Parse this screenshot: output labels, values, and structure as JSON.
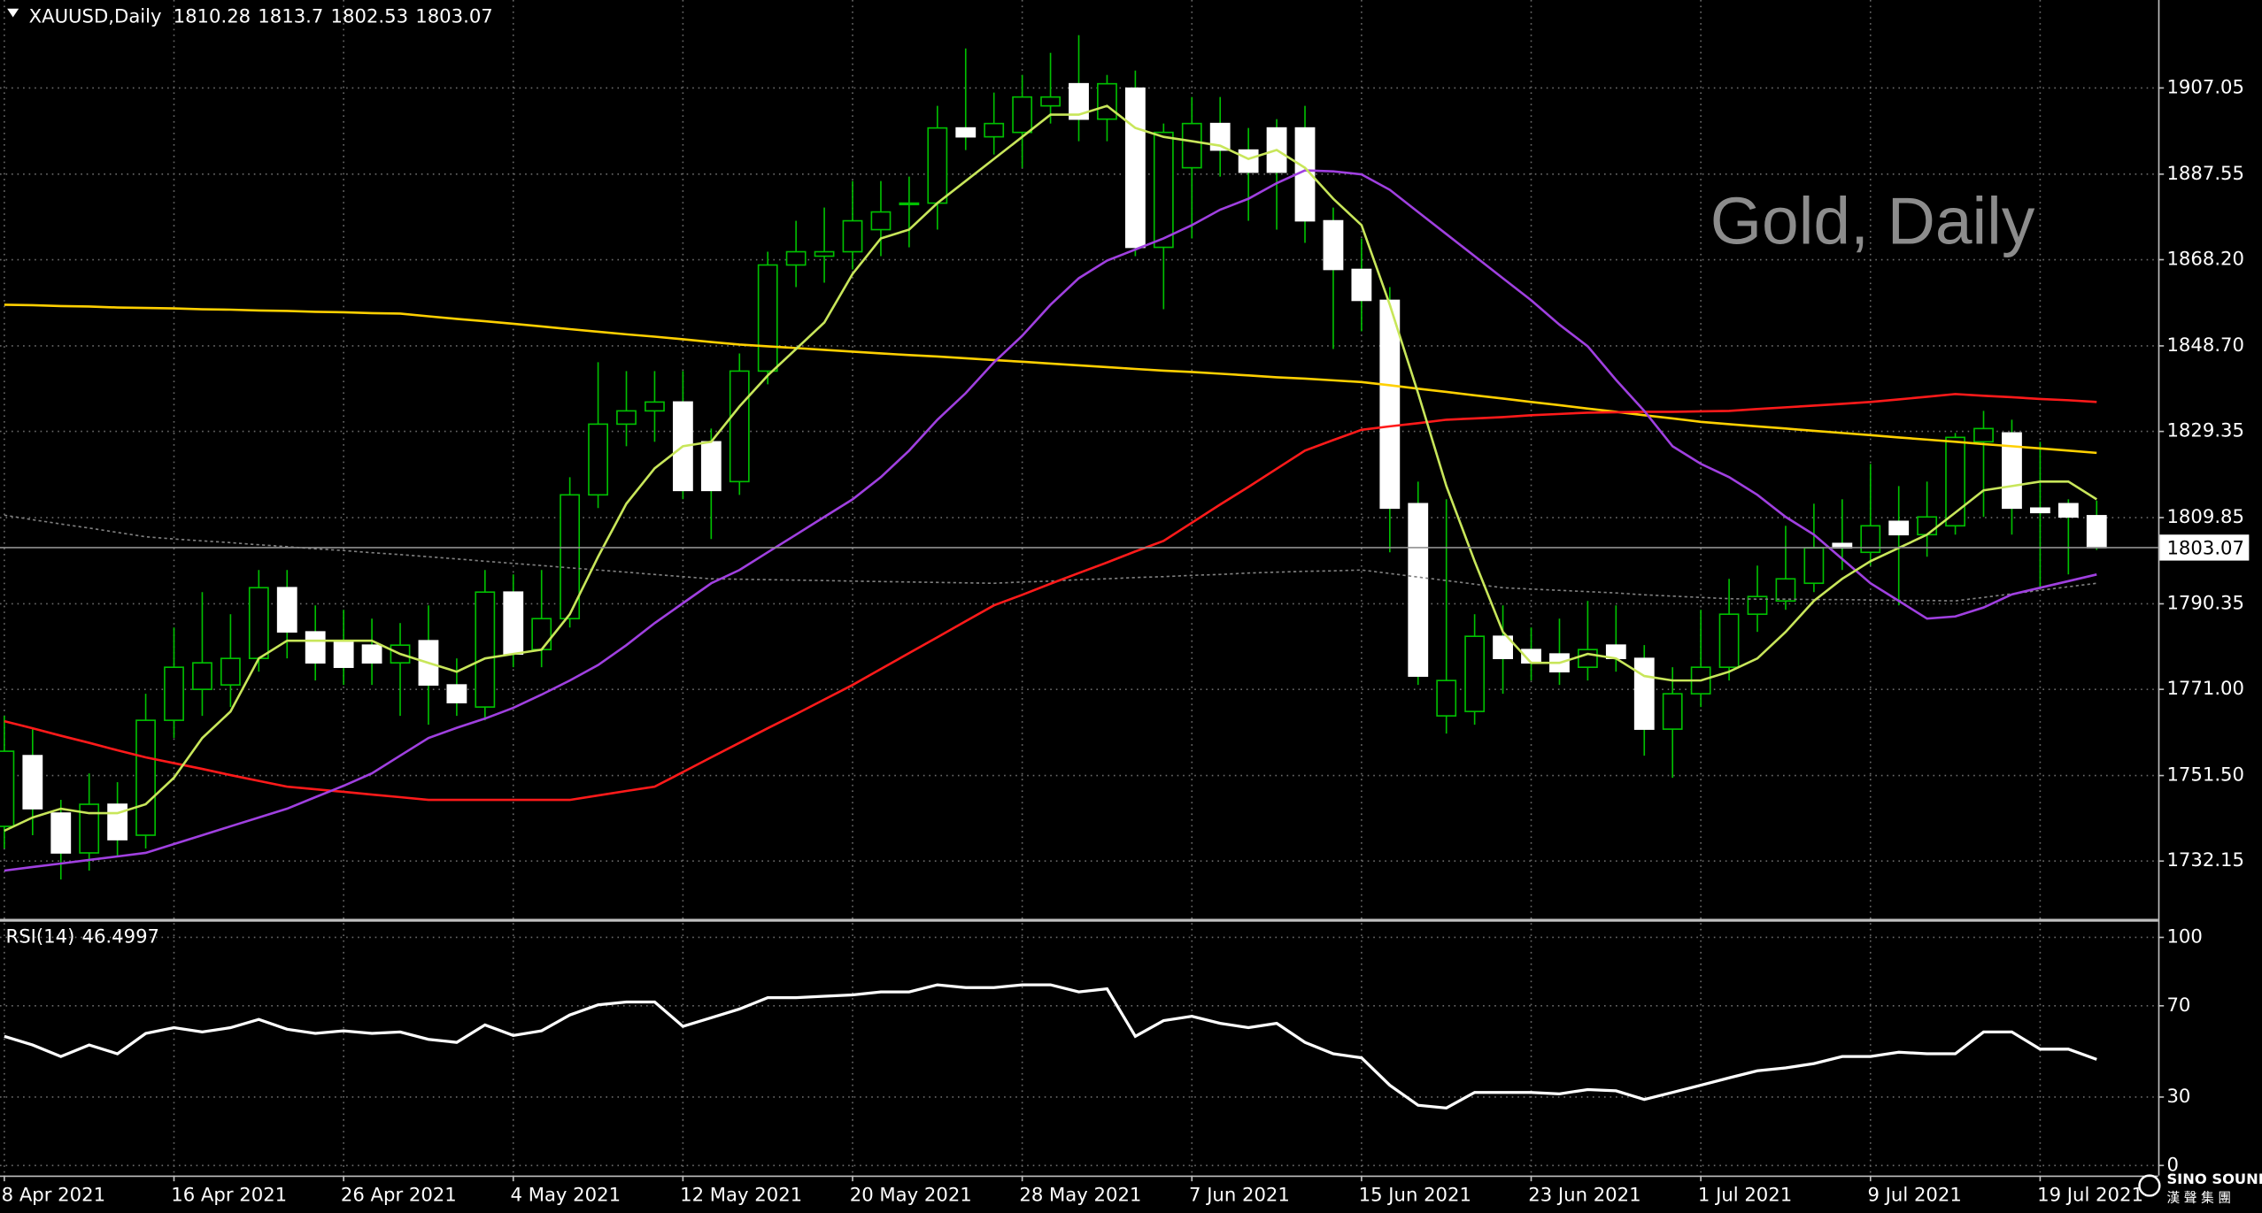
{
  "chart_data": [
    {
      "type": "candlestick",
      "title": "XAUUSD,Daily",
      "annotation": "Gold, Daily",
      "categories": [
        "8 Apr 2021",
        null,
        null,
        null,
        null,
        null,
        "16 Apr 2021",
        null,
        null,
        null,
        null,
        null,
        "26 Apr 2021",
        null,
        null,
        null,
        null,
        null,
        "4 May 2021",
        null,
        null,
        null,
        null,
        null,
        "12 May 2021",
        null,
        null,
        null,
        null,
        null,
        "20 May 2021",
        null,
        null,
        null,
        null,
        null,
        "28 May 2021",
        null,
        null,
        null,
        null,
        null,
        "7 Jun 2021",
        null,
        null,
        null,
        null,
        null,
        "15 Jun 2021",
        null,
        null,
        null,
        null,
        null,
        "23 Jun 2021",
        null,
        null,
        null,
        null,
        null,
        "1 Jul 2021",
        null,
        null,
        null,
        null,
        null,
        "9 Jul 2021",
        null,
        null,
        null,
        null,
        null,
        "19 Jul 2021",
        null,
        null
      ],
      "open": [
        1740,
        1756,
        1743,
        1734,
        1745,
        1738,
        1764,
        1771,
        1772,
        1778,
        1794,
        1784,
        1782,
        1781,
        1777,
        1782,
        1772,
        1767,
        1793,
        1780,
        1787,
        1815,
        1831,
        1834,
        1836,
        1827,
        1818,
        1843,
        1867,
        1869,
        1870,
        1875,
        1881,
        1881,
        1898,
        1896,
        1897,
        1903,
        1908,
        1900,
        1907,
        1871,
        1889,
        1899,
        1893,
        1898,
        1898,
        1877,
        1866,
        1859,
        1813,
        1765,
        1766,
        1783,
        1780,
        1779,
        1776,
        1781,
        1778,
        1762,
        1770,
        1776,
        1788,
        1791,
        1795,
        1804,
        1802,
        1809,
        1806,
        1808,
        1827,
        1829,
        1812,
        1813,
        1810.28
      ],
      "high": [
        1765,
        1762,
        1746,
        1752,
        1750,
        1770,
        1785,
        1793,
        1788,
        1798,
        1798,
        1790,
        1789,
        1787,
        1786,
        1790,
        1778,
        1798,
        1797,
        1798,
        1819,
        1845,
        1843,
        1843,
        1843,
        1830,
        1847,
        1870,
        1877,
        1880,
        1886,
        1886,
        1887,
        1903,
        1916,
        1906,
        1910,
        1915,
        1919,
        1910,
        1911,
        1899,
        1905,
        1905,
        1898,
        1900,
        1903,
        1880,
        1873,
        1862,
        1818,
        1814,
        1788,
        1790,
        1785,
        1787,
        1791,
        1790,
        1781,
        1776,
        1789,
        1796,
        1799,
        1808,
        1813,
        1814,
        1822,
        1817,
        1818,
        1829,
        1834,
        1832,
        1827,
        1814,
        1813.7
      ],
      "low": [
        1735,
        1738,
        1728,
        1730,
        1733,
        1735,
        1760,
        1765,
        1767,
        1775,
        1778,
        1773,
        1772,
        1772,
        1765,
        1763,
        1765,
        1764,
        1776,
        1776,
        1785,
        1812,
        1826,
        1827,
        1814,
        1805,
        1815,
        1840,
        1862,
        1863,
        1866,
        1869,
        1871,
        1875,
        1893,
        1892,
        1889,
        1899,
        1895,
        1895,
        1869,
        1857,
        1873,
        1887,
        1877,
        1875,
        1872,
        1848,
        1852,
        1802,
        1772,
        1761,
        1763,
        1770,
        1773,
        1772,
        1773,
        1775,
        1756,
        1751,
        1767,
        1773,
        1784,
        1789,
        1793,
        1798,
        1799,
        1790,
        1801,
        1806,
        1810,
        1806,
        1794,
        1797,
        1802.53
      ],
      "close": [
        1757,
        1744,
        1734,
        1745,
        1737,
        1764,
        1776,
        1777,
        1778,
        1794,
        1784,
        1777,
        1776,
        1777,
        1781,
        1772,
        1768,
        1793,
        1779,
        1787,
        1815,
        1831,
        1834,
        1836,
        1816,
        1816,
        1843,
        1867,
        1870,
        1870,
        1877,
        1879,
        1881,
        1898,
        1896,
        1899,
        1905,
        1905,
        1900,
        1908,
        1871,
        1897,
        1899,
        1893,
        1888,
        1888,
        1877,
        1866,
        1859,
        1812,
        1774,
        1773,
        1783,
        1778,
        1777,
        1775,
        1780,
        1778,
        1762,
        1770,
        1776,
        1788,
        1792,
        1796,
        1803,
        1803,
        1808,
        1806,
        1810,
        1828,
        1830,
        1812,
        1811,
        1810,
        1803.07
      ],
      "up_color": "#00c000",
      "down_color": "#ffffff",
      "wick_color": "#00c000",
      "lines": [
        {
          "color": "#ffd000",
          "values": [
            1858,
            1857.9,
            1857.7,
            1857.6,
            1857.4,
            1857.3,
            1857.2,
            1857,
            1856.9,
            1856.7,
            1856.6,
            1856.4,
            1856.3,
            1856.1,
            1856,
            1855.4,
            1854.8,
            1854.3,
            1853.7,
            1853.1,
            1852.5,
            1851.9,
            1851.3,
            1850.8,
            1850.2,
            1849.6,
            1849,
            1848.6,
            1848.2,
            1847.8,
            1847.4,
            1847,
            1846.6,
            1846.3,
            1845.9,
            1845.5,
            1845.1,
            1844.7,
            1844.3,
            1843.9,
            1843.5,
            1843.1,
            1842.8,
            1842.4,
            1842,
            1841.6,
            1841.3,
            1840.9,
            1840.5,
            1839.8,
            1839,
            1838.3,
            1837.5,
            1836.8,
            1836,
            1835.3,
            1834.5,
            1833.8,
            1833,
            1832.3,
            1831.5,
            1831,
            1830.5,
            1830,
            1829.5,
            1829,
            1828.5,
            1828,
            1827.5,
            1827,
            1826.5,
            1826,
            1825.5,
            1825,
            1824.5
          ]
        },
        {
          "color": "#808080",
          "style": "dotted",
          "values": [
            1810.4,
            1809.4,
            1808.4,
            1807.5,
            1806.5,
            1805.5,
            1805,
            1804.6,
            1804.2,
            1803.7,
            1803.3,
            1802.8,
            1802.4,
            1801.9,
            1801.5,
            1801,
            1800.5,
            1800,
            1799.5,
            1799,
            1798.5,
            1798,
            1797.5,
            1797,
            1796.5,
            1796,
            1795.9,
            1795.8,
            1795.7,
            1795.6,
            1795.5,
            1795.4,
            1795.3,
            1795.2,
            1795.1,
            1795,
            1795.3,
            1795.5,
            1795.8,
            1796,
            1796.3,
            1796.5,
            1796.8,
            1797,
            1797.3,
            1797.5,
            1797.7,
            1797.8,
            1798,
            1797.2,
            1796.4,
            1795.6,
            1794.8,
            1794,
            1793.7,
            1793.4,
            1793.1,
            1792.8,
            1792.4,
            1792.1,
            1791.8,
            1791.5,
            1791.4,
            1791.4,
            1791.3,
            1791.3,
            1791.2,
            1791.1,
            1791.1,
            1791,
            1791.8,
            1792.6,
            1793.4,
            1794.2,
            1795
          ]
        },
        {
          "color": "#ff1a1a",
          "values": [
            1763.8,
            1762.2,
            1760.5,
            1758.9,
            1757.2,
            1755.6,
            1754.3,
            1753,
            1751.6,
            1750.3,
            1749,
            1748.4,
            1747.8,
            1747.2,
            1746.6,
            1746,
            1746,
            1746,
            1746,
            1746,
            1746,
            1747,
            1748,
            1749,
            1752.3,
            1755.6,
            1758.9,
            1762.2,
            1765.4,
            1768.7,
            1772,
            1775.6,
            1779.2,
            1782.8,
            1786.4,
            1790,
            1792.4,
            1794.9,
            1797.3,
            1799.7,
            1802.2,
            1804.6,
            1808.7,
            1812.8,
            1816.8,
            1820.9,
            1825,
            1827.4,
            1829.7,
            1830.5,
            1831.2,
            1832,
            1832.3,
            1832.6,
            1833,
            1833.3,
            1833.6,
            1833.7,
            1833.8,
            1833.8,
            1833.9,
            1834,
            1834.4,
            1834.8,
            1835.2,
            1835.6,
            1836,
            1836.6,
            1837.2,
            1837.8,
            1837.4,
            1837.1,
            1836.7,
            1836.4,
            1836
          ]
        },
        {
          "color": "#a040e0",
          "values": [
            1730,
            1730.8,
            1731.6,
            1732.4,
            1733.2,
            1734,
            1736,
            1738,
            1740,
            1742,
            1744,
            1746.6,
            1749.2,
            1752,
            1756,
            1760,
            1762.3,
            1764.4,
            1766.8,
            1769.8,
            1773,
            1776.5,
            1781,
            1786,
            1790.5,
            1795,
            1798,
            1802,
            1806,
            1810,
            1814,
            1819,
            1825,
            1832,
            1838,
            1845,
            1851,
            1858,
            1864,
            1868,
            1870.5,
            1873,
            1876,
            1879.5,
            1882,
            1885.5,
            1888.4,
            1888.2,
            1887.5,
            1884,
            1879,
            1874,
            1869,
            1864,
            1859,
            1853.5,
            1848.6,
            1841,
            1834,
            1826,
            1822,
            1819,
            1815,
            1810,
            1806,
            1800.5,
            1795,
            1791,
            1787,
            1787.5,
            1789.5,
            1792.5,
            1794,
            1795.5,
            1797
          ]
        },
        {
          "color": "#c8e65a",
          "values": [
            1739,
            1742,
            1744,
            1743,
            1743,
            1745,
            1751,
            1760,
            1766,
            1778,
            1782,
            1782,
            1782,
            1782,
            1779,
            1777,
            1775,
            1778,
            1779,
            1780,
            1788,
            1801,
            1813,
            1821,
            1826,
            1827,
            1835,
            1842,
            1848,
            1854,
            1865,
            1873,
            1875,
            1881,
            1886,
            1891,
            1896,
            1901,
            1901,
            1903,
            1898,
            1896,
            1895,
            1894,
            1891,
            1893,
            1889,
            1882,
            1876,
            1858,
            1838,
            1817,
            1800,
            1784,
            1777,
            1777,
            1779,
            1778,
            1774,
            1773,
            1773,
            1775,
            1778,
            1784,
            1791,
            1796,
            1800,
            1803,
            1806,
            1811,
            1816,
            1817,
            1818,
            1818,
            1814
          ]
        }
      ],
      "ylim": [
        1719.1,
        1926.95
      ],
      "yticks": [
        1907.05,
        1887.55,
        {
          "value": 1868.2,
          "label": "1868.20"
        },
        {
          "value": 1848.7,
          "label": "1848.70"
        },
        1829.35,
        1809.85,
        1790.35,
        {
          "value": 1771,
          "label": "1771.00"
        },
        {
          "value": 1751.5,
          "label": "1751.50"
        },
        1732.15
      ],
      "grid": true
    },
    {
      "type": "line",
      "title": "RSI(14)",
      "color": "#ffffff",
      "values": [
        56.6,
        52.8,
        47.8,
        52.8,
        49,
        57.9,
        60.4,
        58.5,
        60.4,
        64,
        59.7,
        57.9,
        59,
        57.9,
        58.5,
        55.3,
        54,
        61.6,
        57,
        59,
        66,
        70.4,
        71.7,
        71.7,
        61,
        64.8,
        68.6,
        73.6,
        73.6,
        74.2,
        74.8,
        76.1,
        76.1,
        79.2,
        78,
        78,
        79.2,
        79.2,
        76.1,
        77.4,
        56.6,
        63.5,
        65.4,
        62.3,
        60.4,
        62.3,
        54,
        49,
        47.2,
        35.2,
        26.4,
        25.2,
        32,
        32,
        32,
        31.4,
        33.3,
        32.7,
        28.9,
        32,
        35.2,
        38.4,
        41.5,
        42.8,
        44.7,
        47.8,
        47.8,
        49.7,
        49,
        49,
        58.5,
        58.5,
        51,
        51,
        46.4997
      ],
      "ylim": [
        -4.4,
        106.9
      ],
      "yticks": [
        100,
        70,
        30,
        0
      ],
      "grid": true
    }
  ],
  "logo": {
    "text": "SINO SOUND",
    "subtext": "漢 聲 集 團"
  }
}
